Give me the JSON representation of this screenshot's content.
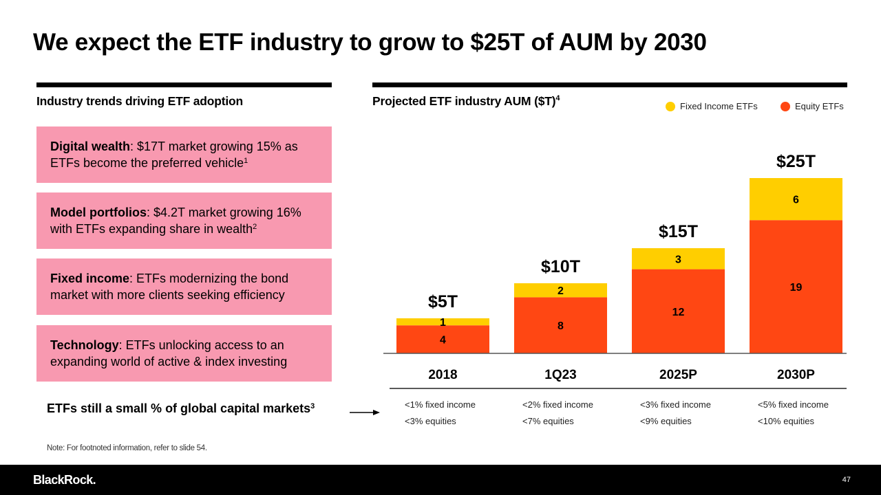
{
  "slide": {
    "title": "We expect the ETF industry to grow to $25T of AUM by 2030",
    "page_number": "47",
    "brand": "BlackRock.",
    "note": "Note: For footnoted information, refer to slide 54."
  },
  "left": {
    "heading": "Industry trends driving ETF adoption",
    "trends": [
      {
        "bold": "Digital wealth",
        "text": ": $17T market growing 15% as ETFs become the preferred vehicle",
        "footnote": "1"
      },
      {
        "bold": "Model portfolios",
        "text": ": $4.2T market growing 16% with ETFs expanding share in wealth",
        "footnote": "2"
      },
      {
        "bold": "Fixed income",
        "text": ": ETFs modernizing the bond market with more clients seeking efficiency",
        "footnote": ""
      },
      {
        "bold": "Technology",
        "text": ": ETFs unlocking access to an expanding world of active & index investing",
        "footnote": ""
      }
    ],
    "small_share": {
      "text": "ETFs still a small % of global capital markets",
      "footnote": "3"
    }
  },
  "right": {
    "heading": "Projected ETF industry AUM ($T)",
    "heading_footnote": "4"
  },
  "colors": {
    "fixed_income": "#ffce00",
    "equity": "#ff4713",
    "card": "#f899b0"
  },
  "chart_data": {
    "type": "bar",
    "stacked": true,
    "title": "Projected ETF industry AUM ($T)",
    "xlabel": "",
    "ylabel": "AUM ($T)",
    "ylim": [
      0,
      25
    ],
    "grid": false,
    "legend_position": "top-right",
    "categories": [
      "2018",
      "1Q23",
      "2025P",
      "2030P"
    ],
    "series": [
      {
        "name": "Equity ETFs",
        "color": "#ff4713",
        "values": [
          4,
          8,
          12,
          19
        ]
      },
      {
        "name": "Fixed Income ETFs",
        "color": "#ffce00",
        "values": [
          1,
          2,
          3,
          6
        ]
      }
    ],
    "totals": [
      "$5T",
      "$10T",
      "$15T",
      "$25T"
    ],
    "market_share": [
      {
        "fixed_income": "<1% fixed income",
        "equities": "<3% equities"
      },
      {
        "fixed_income": "<2% fixed income",
        "equities": "<7% equities"
      },
      {
        "fixed_income": "<3% fixed income",
        "equities": "<9% equities"
      },
      {
        "fixed_income": "<5% fixed income",
        "equities": "<10% equities"
      }
    ]
  }
}
